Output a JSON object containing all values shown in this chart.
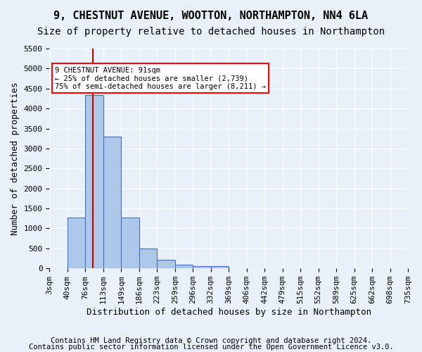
{
  "title1": "9, CHESTNUT AVENUE, WOOTTON, NORTHAMPTON, NN4 6LA",
  "title2": "Size of property relative to detached houses in Northampton",
  "xlabel": "Distribution of detached houses by size in Northampton",
  "ylabel": "Number of detached properties",
  "footer1": "Contains HM Land Registry data © Crown copyright and database right 2024.",
  "footer2": "Contains public sector information licensed under the Open Government Licence v3.0.",
  "bin_labels": [
    "3sqm",
    "40sqm",
    "76sqm",
    "113sqm",
    "149sqm",
    "186sqm",
    "223sqm",
    "259sqm",
    "296sqm",
    "332sqm",
    "369sqm",
    "406sqm",
    "442sqm",
    "479sqm",
    "515sqm",
    "552sqm",
    "589sqm",
    "625sqm",
    "662sqm",
    "698sqm",
    "735sqm"
  ],
  "bar_values": [
    0,
    1270,
    4330,
    3300,
    1280,
    490,
    220,
    90,
    60,
    55,
    0,
    0,
    0,
    0,
    0,
    0,
    0,
    0,
    0,
    0
  ],
  "bar_color": "#aec6e8",
  "bar_edge_color": "#4472c4",
  "vline_color": "#cc0000",
  "annotation_text": "9 CHESTNUT AVENUE: 91sqm\n← 25% of detached houses are smaller (2,739)\n75% of semi-detached houses are larger (8,211) →",
  "ylim": [
    0,
    5500
  ],
  "yticks": [
    0,
    500,
    1000,
    1500,
    2000,
    2500,
    3000,
    3500,
    4000,
    4500,
    5000,
    5500
  ],
  "bg_color": "#eaf0f8",
  "plot_bg_color": "#eaf0f8",
  "grid_color": "#ffffff",
  "title_fontsize": 11,
  "subtitle_fontsize": 10,
  "axis_label_fontsize": 9,
  "tick_fontsize": 8,
  "footer_fontsize": 7.5
}
